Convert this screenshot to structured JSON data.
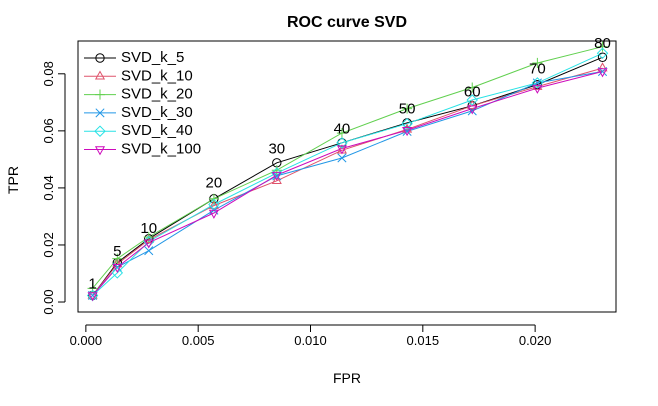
{
  "chart_data": {
    "type": "line",
    "title": "ROC curve SVD",
    "xlabel": "FPR",
    "ylabel": "TPR",
    "xlim": [
      -0.00035,
      0.0236
    ],
    "ylim": [
      -0.0035,
      0.0915
    ],
    "xticks": [
      0.0,
      0.005,
      0.01,
      0.015,
      0.02
    ],
    "xtick_labels": [
      "0.000",
      "0.005",
      "0.010",
      "0.015",
      "0.020"
    ],
    "yticks": [
      0.0,
      0.02,
      0.04,
      0.06,
      0.08
    ],
    "ytick_labels": [
      "0.00",
      "0.02",
      "0.04",
      "0.06",
      "0.08"
    ],
    "grid": false,
    "legend_position": "top-left",
    "x": [
      0.0003,
      0.0014,
      0.0028,
      0.0057,
      0.0085,
      0.0114,
      0.0143,
      0.0172,
      0.0201,
      0.023
    ],
    "point_labels": [
      "1",
      "5",
      "10",
      "20",
      "30",
      "40",
      "50",
      "60",
      "70",
      "80"
    ],
    "point_label_y": [
      0.0062,
      0.0175,
      0.0255,
      0.0415,
      0.0535,
      0.0605,
      0.0675,
      0.0735,
      0.0815,
      0.0905
    ],
    "series": [
      {
        "name": "SVD_k_5",
        "color": "#000000",
        "marker": "circle",
        "values": [
          0.0023,
          0.0138,
          0.0222,
          0.0362,
          0.0488,
          0.0558,
          0.0628,
          0.0688,
          0.0762,
          0.0858
        ]
      },
      {
        "name": "SVD_k_10",
        "color": "#DF536B",
        "marker": "triangle-up",
        "values": [
          0.0023,
          0.0133,
          0.0218,
          0.0338,
          0.0425,
          0.0532,
          0.0605,
          0.0688,
          0.0755,
          0.082
        ]
      },
      {
        "name": "SVD_k_20",
        "color": "#61D04F",
        "marker": "plus",
        "values": [
          0.0048,
          0.0152,
          0.0228,
          0.0362,
          0.0462,
          0.0592,
          0.0678,
          0.0752,
          0.0838,
          0.0895
        ]
      },
      {
        "name": "SVD_k_30",
        "color": "#2297E6",
        "marker": "x",
        "values": [
          0.0023,
          0.0122,
          0.018,
          0.0322,
          0.0442,
          0.0505,
          0.0598,
          0.067,
          0.0768,
          0.0808
        ]
      },
      {
        "name": "SVD_k_40",
        "color": "#28E2E5",
        "marker": "diamond",
        "values": [
          0.0023,
          0.0102,
          0.0212,
          0.0342,
          0.0452,
          0.0558,
          0.0625,
          0.0708,
          0.0768,
          0.0872
        ]
      },
      {
        "name": "SVD_k_100",
        "color": "#CD0BBC",
        "marker": "triangle-down",
        "values": [
          0.0023,
          0.0122,
          0.0208,
          0.0312,
          0.0445,
          0.0538,
          0.0602,
          0.0678,
          0.075,
          0.0808
        ]
      }
    ]
  }
}
